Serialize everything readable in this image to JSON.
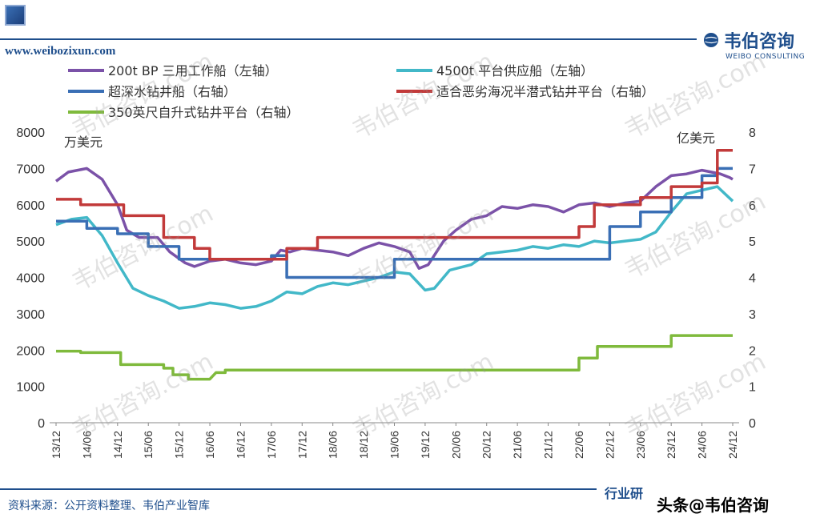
{
  "header": {
    "site_url": "www.weibozixun.com",
    "brand_name": "韦伯咨询",
    "brand_en": "WEIBO CONSULTING"
  },
  "footer": {
    "source": "资料来源：公开资料整理、韦伯产业智库",
    "right_text": "行业研",
    "credit": "头条@韦伯咨询"
  },
  "watermark": "韦伯咨询.com",
  "chart_data": {
    "type": "line",
    "x_ticks": [
      "13/12",
      "14/06",
      "14/12",
      "15/06",
      "15/12",
      "16/06",
      "16/12",
      "17/06",
      "17/12",
      "18/06",
      "18/12",
      "19/06",
      "19/12",
      "20/06",
      "20/12",
      "21/06",
      "21/12",
      "22/06",
      "22/12",
      "23/06",
      "23/12",
      "24/06",
      "24/12"
    ],
    "left_unit": "万美元",
    "right_unit": "亿美元",
    "ylim_left": [
      0,
      8000
    ],
    "yticks_left": [
      0,
      1000,
      2000,
      3000,
      4000,
      5000,
      6000,
      7000,
      8000
    ],
    "ylim_right": [
      0,
      8
    ],
    "yticks_right": [
      0,
      1,
      2,
      3,
      4,
      5,
      6,
      7,
      8
    ],
    "legend_position": "top",
    "series": [
      {
        "name": "200t BP 三用工作船（左轴）",
        "axis": "left",
        "color": "#7b52a8",
        "points": [
          [
            0,
            6650
          ],
          [
            0.4,
            6900
          ],
          [
            1.0,
            7000
          ],
          [
            1.5,
            6700
          ],
          [
            2.0,
            6000
          ],
          [
            2.3,
            5300
          ],
          [
            2.7,
            5100
          ],
          [
            3.3,
            5100
          ],
          [
            3.7,
            4700
          ],
          [
            4.2,
            4400
          ],
          [
            4.5,
            4300
          ],
          [
            5.0,
            4450
          ],
          [
            5.5,
            4500
          ],
          [
            6.0,
            4400
          ],
          [
            6.5,
            4350
          ],
          [
            7.0,
            4450
          ],
          [
            7.3,
            4750
          ],
          [
            7.6,
            4700
          ],
          [
            8.0,
            4800
          ],
          [
            8.5,
            4750
          ],
          [
            9.0,
            4700
          ],
          [
            9.5,
            4600
          ],
          [
            10.0,
            4800
          ],
          [
            10.5,
            4950
          ],
          [
            11.0,
            4850
          ],
          [
            11.5,
            4700
          ],
          [
            11.8,
            4250
          ],
          [
            12.1,
            4350
          ],
          [
            12.6,
            5000
          ],
          [
            13.0,
            5300
          ],
          [
            13.5,
            5600
          ],
          [
            14.0,
            5700
          ],
          [
            14.5,
            5950
          ],
          [
            15.0,
            5900
          ],
          [
            15.5,
            6000
          ],
          [
            16.0,
            5950
          ],
          [
            16.5,
            5800
          ],
          [
            17.0,
            6000
          ],
          [
            17.5,
            6050
          ],
          [
            18.0,
            5950
          ],
          [
            18.5,
            6050
          ],
          [
            19.0,
            6100
          ],
          [
            19.5,
            6500
          ],
          [
            20.0,
            6800
          ],
          [
            20.5,
            6850
          ],
          [
            21.0,
            6950
          ],
          [
            21.3,
            6900
          ],
          [
            21.6,
            6850
          ],
          [
            21.9,
            6750
          ],
          [
            22.0,
            6700
          ]
        ]
      },
      {
        "name": "4500t 平台供应船（左轴）",
        "axis": "left",
        "color": "#42b8c8",
        "points": [
          [
            0,
            5450
          ],
          [
            0.5,
            5600
          ],
          [
            1.0,
            5650
          ],
          [
            1.5,
            5150
          ],
          [
            2.0,
            4400
          ],
          [
            2.5,
            3700
          ],
          [
            3.0,
            3500
          ],
          [
            3.5,
            3350
          ],
          [
            4.0,
            3150
          ],
          [
            4.5,
            3200
          ],
          [
            5.0,
            3300
          ],
          [
            5.5,
            3250
          ],
          [
            6.0,
            3150
          ],
          [
            6.5,
            3200
          ],
          [
            7.0,
            3350
          ],
          [
            7.5,
            3600
          ],
          [
            8.0,
            3550
          ],
          [
            8.5,
            3750
          ],
          [
            9.0,
            3850
          ],
          [
            9.5,
            3800
          ],
          [
            10.0,
            3900
          ],
          [
            10.5,
            4000
          ],
          [
            11.0,
            4150
          ],
          [
            11.5,
            4100
          ],
          [
            12.0,
            3650
          ],
          [
            12.3,
            3700
          ],
          [
            12.8,
            4200
          ],
          [
            13.5,
            4350
          ],
          [
            14.0,
            4650
          ],
          [
            14.5,
            4700
          ],
          [
            15.0,
            4750
          ],
          [
            15.5,
            4850
          ],
          [
            16.0,
            4800
          ],
          [
            16.5,
            4900
          ],
          [
            17.0,
            4850
          ],
          [
            17.5,
            5000
          ],
          [
            18.0,
            4950
          ],
          [
            18.5,
            5000
          ],
          [
            19.0,
            5050
          ],
          [
            19.5,
            5250
          ],
          [
            20.0,
            5800
          ],
          [
            20.5,
            6300
          ],
          [
            21.0,
            6400
          ],
          [
            21.5,
            6500
          ],
          [
            22.0,
            6100
          ]
        ]
      },
      {
        "name": "超深水钻井船（右轴）",
        "axis": "right",
        "color": "#3a6fb5",
        "points": [
          [
            0,
            5.55
          ],
          [
            1.0,
            5.55
          ],
          [
            1.0,
            5.35
          ],
          [
            2.0,
            5.35
          ],
          [
            2.0,
            5.2
          ],
          [
            3.0,
            5.2
          ],
          [
            3.0,
            4.85
          ],
          [
            4.0,
            4.85
          ],
          [
            4.0,
            4.5
          ],
          [
            5.0,
            4.5
          ],
          [
            5.5,
            4.5
          ],
          [
            6.0,
            4.5
          ],
          [
            7.0,
            4.5
          ],
          [
            7.0,
            4.6
          ],
          [
            7.5,
            4.6
          ],
          [
            7.5,
            4.0
          ],
          [
            8.5,
            4.0
          ],
          [
            11.0,
            4.0
          ],
          [
            11.0,
            4.5
          ],
          [
            18.0,
            4.5
          ],
          [
            18.0,
            5.4
          ],
          [
            19.0,
            5.4
          ],
          [
            19.0,
            5.8
          ],
          [
            20.0,
            5.8
          ],
          [
            20.0,
            6.2
          ],
          [
            21.0,
            6.2
          ],
          [
            21.0,
            6.8
          ],
          [
            21.5,
            6.8
          ],
          [
            21.5,
            7.0
          ],
          [
            22.0,
            7.0
          ]
        ]
      },
      {
        "name": "适合恶劣海况半潜式钻井平台（右轴）",
        "axis": "right",
        "color": "#c23a3a",
        "points": [
          [
            0,
            6.15
          ],
          [
            0.8,
            6.15
          ],
          [
            0.8,
            6.0
          ],
          [
            2.2,
            6.0
          ],
          [
            2.2,
            5.7
          ],
          [
            3.5,
            5.7
          ],
          [
            3.5,
            5.1
          ],
          [
            4.5,
            5.1
          ],
          [
            4.5,
            4.8
          ],
          [
            5.0,
            4.8
          ],
          [
            5.0,
            4.5
          ],
          [
            7.5,
            4.5
          ],
          [
            7.5,
            4.8
          ],
          [
            8.5,
            4.8
          ],
          [
            8.5,
            5.1
          ],
          [
            17.0,
            5.1
          ],
          [
            17.0,
            5.4
          ],
          [
            17.5,
            5.4
          ],
          [
            17.5,
            6.0
          ],
          [
            19.0,
            6.0
          ],
          [
            19.0,
            6.2
          ],
          [
            20.0,
            6.2
          ],
          [
            20.0,
            6.5
          ],
          [
            21.0,
            6.5
          ],
          [
            21.0,
            6.6
          ],
          [
            21.5,
            6.6
          ],
          [
            21.5,
            7.5
          ],
          [
            22.0,
            7.5
          ]
        ]
      },
      {
        "name": "350英尺自升式钻井平台（右轴）",
        "axis": "right",
        "color": "#7fba3c",
        "points": [
          [
            0,
            1.97
          ],
          [
            0.8,
            1.97
          ],
          [
            0.8,
            1.93
          ],
          [
            2.1,
            1.93
          ],
          [
            2.1,
            1.6
          ],
          [
            3.5,
            1.6
          ],
          [
            3.5,
            1.5
          ],
          [
            3.8,
            1.5
          ],
          [
            3.8,
            1.32
          ],
          [
            4.3,
            1.32
          ],
          [
            4.3,
            1.2
          ],
          [
            5.0,
            1.2
          ],
          [
            5.2,
            1.38
          ],
          [
            5.5,
            1.38
          ],
          [
            5.5,
            1.45
          ],
          [
            17.0,
            1.45
          ],
          [
            17.0,
            1.78
          ],
          [
            17.6,
            1.78
          ],
          [
            17.6,
            2.1
          ],
          [
            19.5,
            2.1
          ],
          [
            19.5,
            2.1
          ],
          [
            20.0,
            2.1
          ],
          [
            20.0,
            2.4
          ],
          [
            22.0,
            2.4
          ]
        ]
      }
    ]
  }
}
